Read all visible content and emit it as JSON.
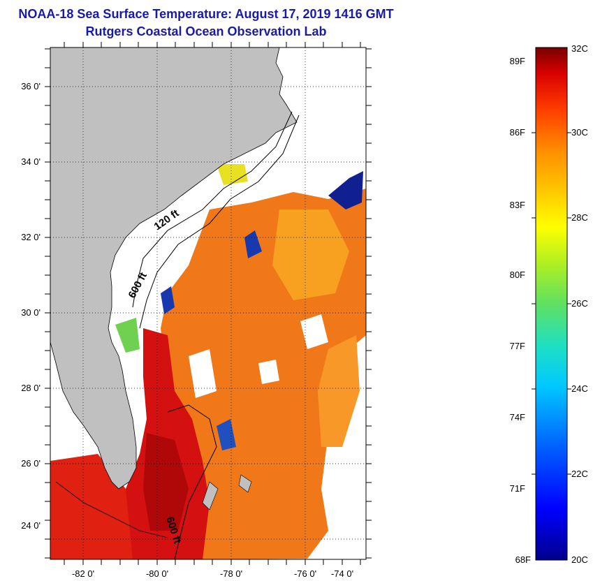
{
  "header": {
    "title": "NOAA-18 Sea Surface Temperature:  August 17, 2019 1416 GMT",
    "subtitle": "Rutgers Coastal Ocean Observation Lab"
  },
  "map": {
    "lat_labels": [
      "36 0'",
      "34 0'",
      "32 0'",
      "30 0'",
      "28 0'",
      "26 0'",
      "24 0'"
    ],
    "lon_labels": [
      "-82 0'",
      "-80 0'",
      "-78 0'",
      "-76 0'",
      "-74 0'"
    ],
    "contour_labels": {
      "c120": "120 ft",
      "c600": "600 ft",
      "c600_south": "600 ft"
    },
    "colors": {
      "land": "#c0c0c0",
      "no_data": "#ffffff",
      "warm_water": "#f07818",
      "hot_water": "#d01010",
      "cold_water": "#102090"
    }
  },
  "colorbar": {
    "fahrenheit": [
      "89F",
      "86F",
      "83F",
      "80F",
      "77F",
      "74F",
      "71F",
      "68F"
    ],
    "celsius": [
      "32C",
      "30C",
      "28C",
      "26C",
      "24C",
      "22C",
      "20C"
    ],
    "min_c": 20,
    "max_c": 32
  }
}
